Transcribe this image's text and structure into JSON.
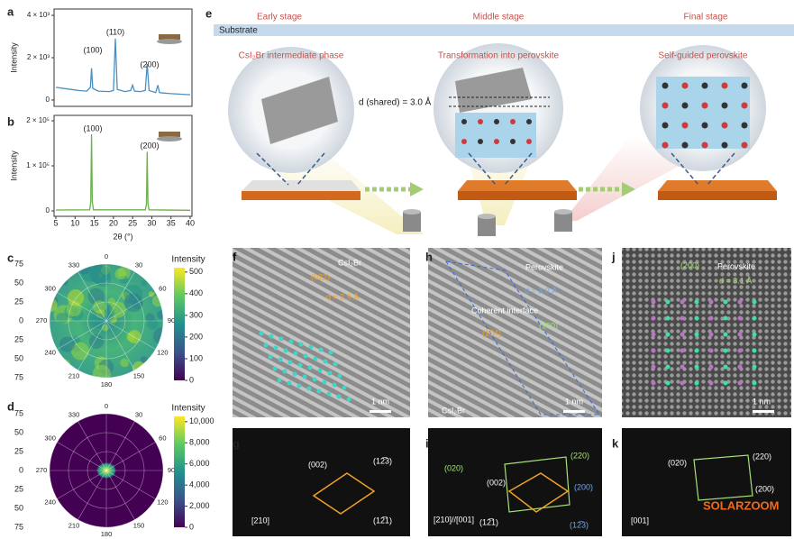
{
  "panel_labels": [
    "a",
    "b",
    "c",
    "d",
    "e",
    "f",
    "g",
    "h",
    "i",
    "j",
    "k"
  ],
  "chart_data": [
    {
      "type": "line",
      "ylabel": "Intensity",
      "annotations": [
        "(100)",
        "(110)",
        "(200)"
      ],
      "color": "#4a8fc2",
      "xlim": [
        5,
        40
      ],
      "ylim": [
        -300,
        4300
      ],
      "yticks": [
        0,
        {
          "value": 2000,
          "label": "2 × 10³"
        },
        {
          "value": 4000,
          "label": "4 × 10³"
        }
      ],
      "x": [
        5,
        8,
        11,
        13,
        14,
        14.3,
        14.6,
        16,
        19,
        20,
        20.5,
        21,
        23,
        24.5,
        25,
        25.5,
        27,
        28.3,
        28.8,
        29.3,
        31,
        31.6,
        32,
        33,
        35,
        37,
        40
      ],
      "values": [
        600,
        520,
        450,
        420,
        600,
        1500,
        550,
        420,
        400,
        450,
        2900,
        500,
        400,
        450,
        700,
        420,
        400,
        450,
        1700,
        450,
        350,
        700,
        350,
        330,
        300,
        280,
        250
      ]
    },
    {
      "type": "line",
      "ylabel": "Intensity",
      "xlabel": "2θ (°)",
      "annotations": [
        "(100)",
        "(200)"
      ],
      "color": "#6ab04c",
      "xlim": [
        5,
        40
      ],
      "ylim": [
        -12000,
        212000
      ],
      "xticks": [
        5,
        10,
        15,
        20,
        25,
        30,
        35,
        40
      ],
      "yticks": [
        0,
        {
          "value": 100000,
          "label": "1 × 10⁵"
        },
        {
          "value": 200000,
          "label": "2 × 10⁵"
        }
      ],
      "x": [
        5,
        13.8,
        14.1,
        14.3,
        14.5,
        14.8,
        28.3,
        28.6,
        28.8,
        29.0,
        29.3,
        40
      ],
      "values": [
        2000,
        2500,
        20000,
        170000,
        20000,
        2500,
        2500,
        15000,
        131000,
        15000,
        2500,
        1500
      ]
    }
  ],
  "polar_plots": [
    {
      "radial_labels": [
        75,
        50,
        25,
        0,
        25,
        50,
        75
      ],
      "angle_labels": [
        0,
        30,
        60,
        90,
        120,
        150,
        180,
        210,
        240,
        270,
        300,
        330
      ],
      "colorbar_title": "Intensity",
      "clim": [
        0,
        520
      ],
      "cticks": [
        0,
        100,
        200,
        300,
        400,
        500
      ]
    },
    {
      "radial_labels": [
        75,
        50,
        25,
        0,
        25,
        50,
        75
      ],
      "angle_labels": [
        0,
        30,
        60,
        90,
        120,
        150,
        180,
        210,
        240,
        270,
        300,
        330
      ],
      "colorbar_title": "Intensity",
      "clim": [
        0,
        10500
      ],
      "cticks": [
        0,
        {
          "value": 2000,
          "label": "2,000"
        },
        {
          "value": 4000,
          "label": "4,000"
        },
        {
          "value": 6000,
          "label": "6,000"
        },
        {
          "value": 8000,
          "label": "8,000"
        },
        {
          "value": 10000,
          "label": "10,000"
        }
      ]
    }
  ],
  "schematic": {
    "stages": [
      "Early stage",
      "Middle stage",
      "Final stage"
    ],
    "substrate": "Substrate",
    "phases": [
      "CsI₂Br intermediate phase",
      "Transformation into perovskite",
      "Self-guided perovskite"
    ],
    "spacing": "d (shared) = 3.0 Å"
  },
  "micrographs": {
    "f": [
      "CsI₂Br",
      "(022)",
      "d = 2.9 Å",
      "1 nm"
    ],
    "h": [
      "Perovskite",
      "d = 3.0 Å",
      "Coherent interface",
      "(104)",
      "(200)",
      "CsI₂Br",
      "1 nm"
    ],
    "j": [
      "(200)",
      "Perovskite",
      "d = 3.1 Å",
      "1 nm"
    ],
    "g": [
      "[210]",
      "(002)",
      "(12̅3)",
      "(12̅1)"
    ],
    "i": [
      "(020)",
      "(220)",
      "(002)",
      "(200)",
      "(12̅1)",
      "(12̅3)",
      "[210]//[001]"
    ],
    "k": [
      "(020)",
      "(220)",
      "(200)",
      "[001]",
      "SOLARZOOM"
    ]
  }
}
